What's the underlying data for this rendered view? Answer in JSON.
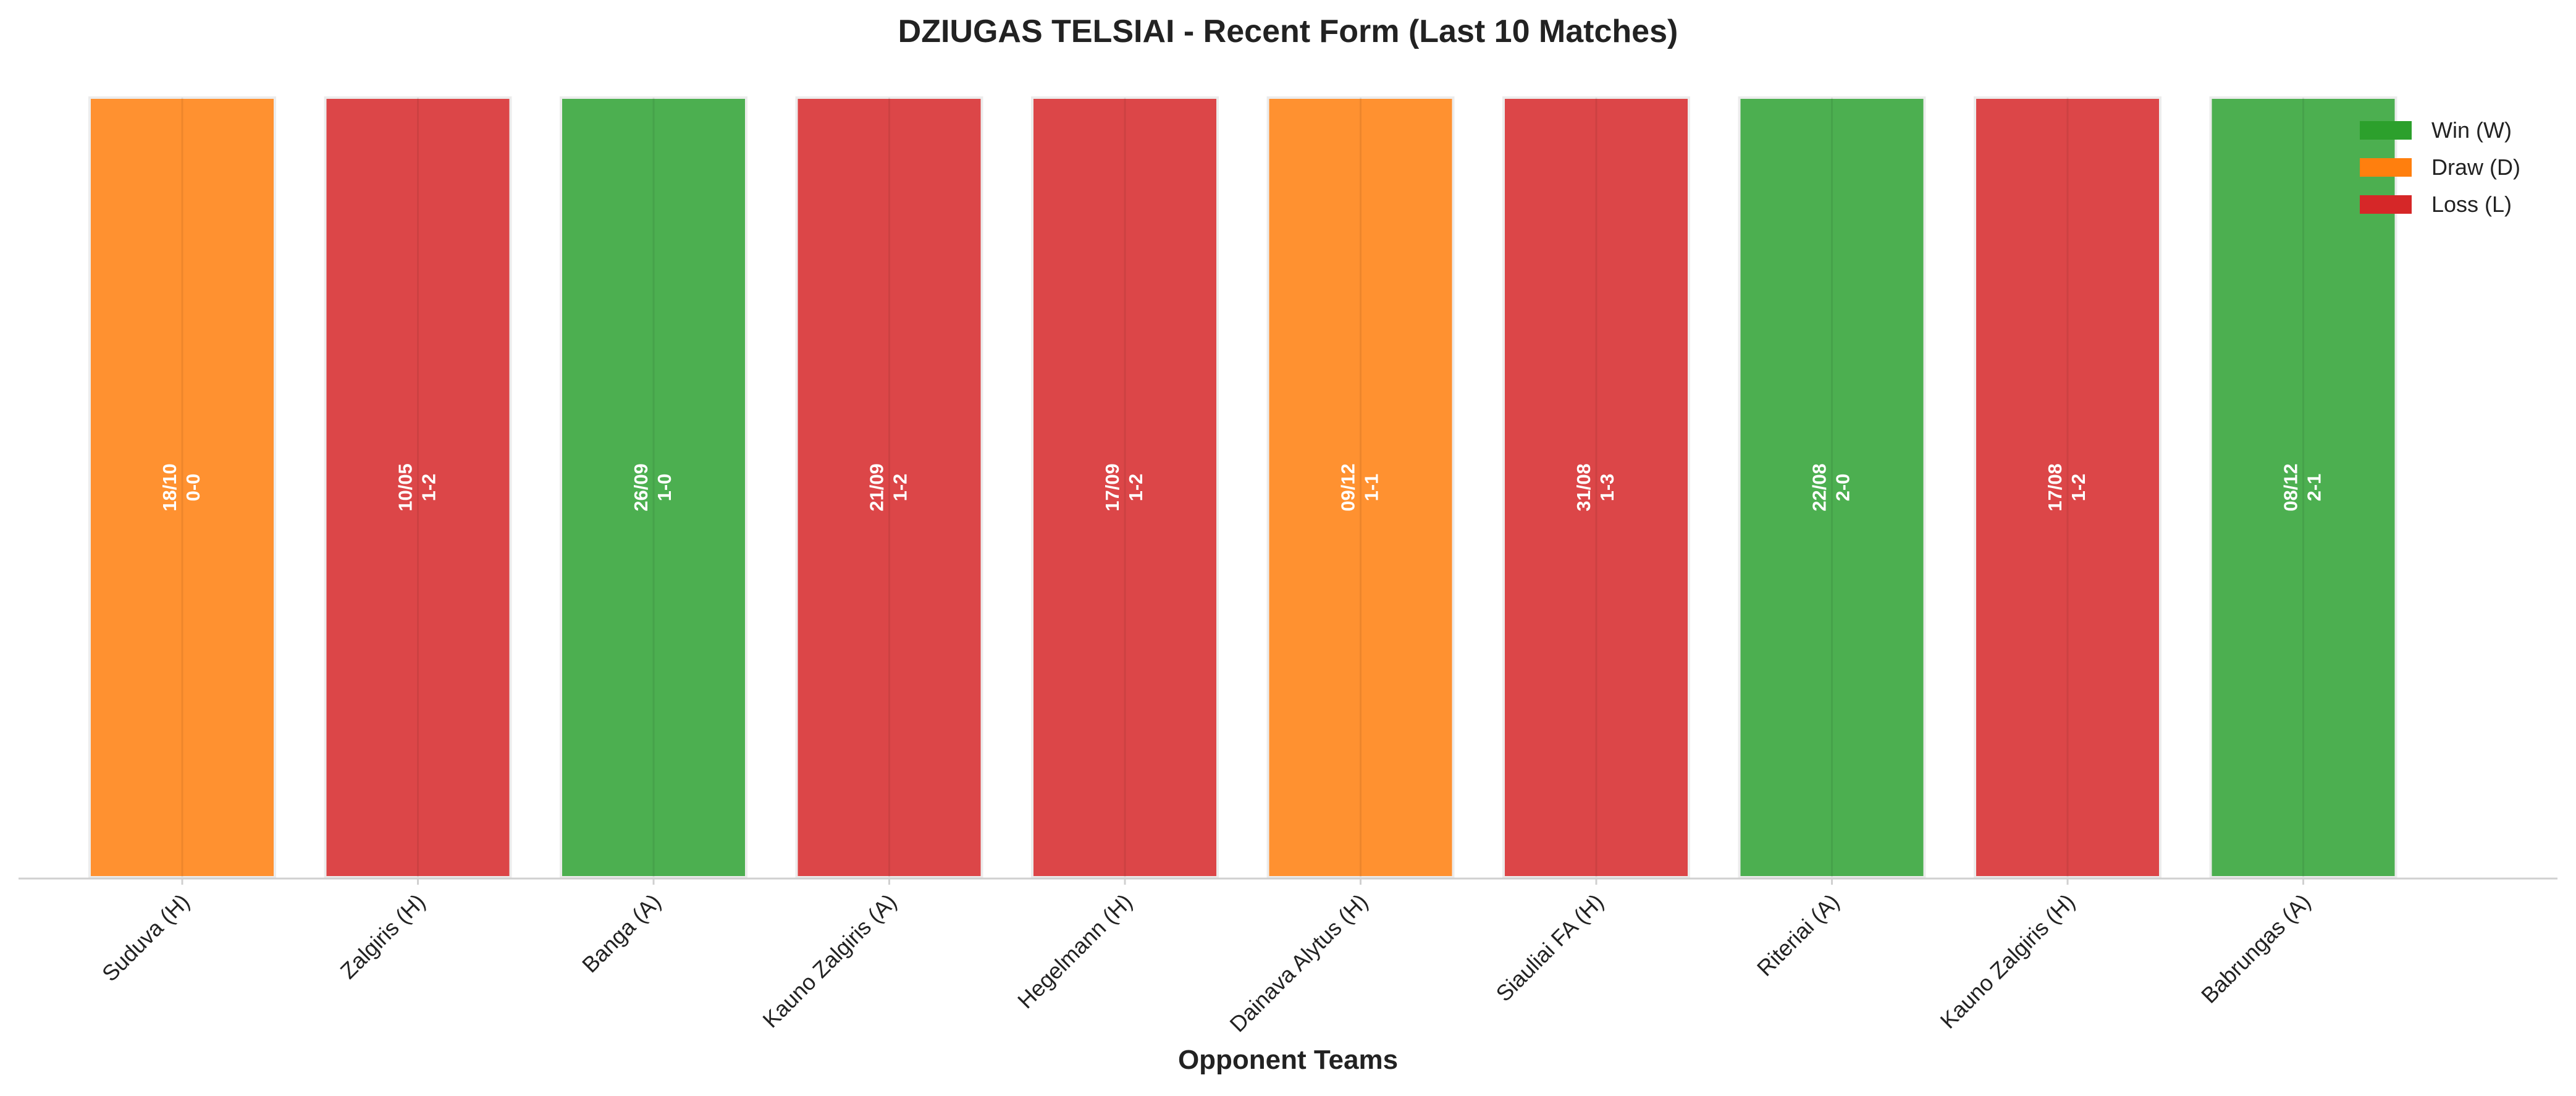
{
  "chart_data": {
    "type": "bar",
    "title": "DZIUGAS TELSIAI - Recent Form (Last 10 Matches)",
    "xlabel": "Opponent Teams",
    "ylabel": "",
    "grid": false,
    "legend_position": "top-right",
    "categories": [
      "Suduva (H)",
      "Zalgiris (H)",
      "Banga (A)",
      "Kauno Zalgiris (A)",
      "Hegelmann (H)",
      "Dainava Alytus (H)",
      "Siauliai FA (H)",
      "Riteriai (A)",
      "Kauno Zalgiris (H)",
      "Babrungas (A)"
    ],
    "values": [
      1,
      1,
      1,
      1,
      1,
      1,
      1,
      1,
      1,
      1
    ],
    "results": [
      "D",
      "L",
      "W",
      "L",
      "L",
      "D",
      "L",
      "W",
      "L",
      "W"
    ],
    "dates": [
      "18/10",
      "10/05",
      "26/09",
      "21/09",
      "17/09",
      "09/12",
      "31/08",
      "22/08",
      "17/08",
      "08/12"
    ],
    "scores": [
      "0-0",
      "1-2",
      "1-0",
      "1-2",
      "1-2",
      "1-1",
      "1-3",
      "2-0",
      "1-2",
      "2-1"
    ],
    "legend": [
      {
        "key": "W",
        "label": "Win (W)",
        "color": "#2ca02c"
      },
      {
        "key": "D",
        "label": "Draw (D)",
        "color": "#ff7f0e"
      },
      {
        "key": "L",
        "label": "Loss (L)",
        "color": "#d62728"
      }
    ],
    "colors": {
      "W": "#4caf50",
      "D": "#ff9130",
      "L": "#dc4648",
      "axis": "#d0d0d0",
      "text": "#222222"
    }
  }
}
